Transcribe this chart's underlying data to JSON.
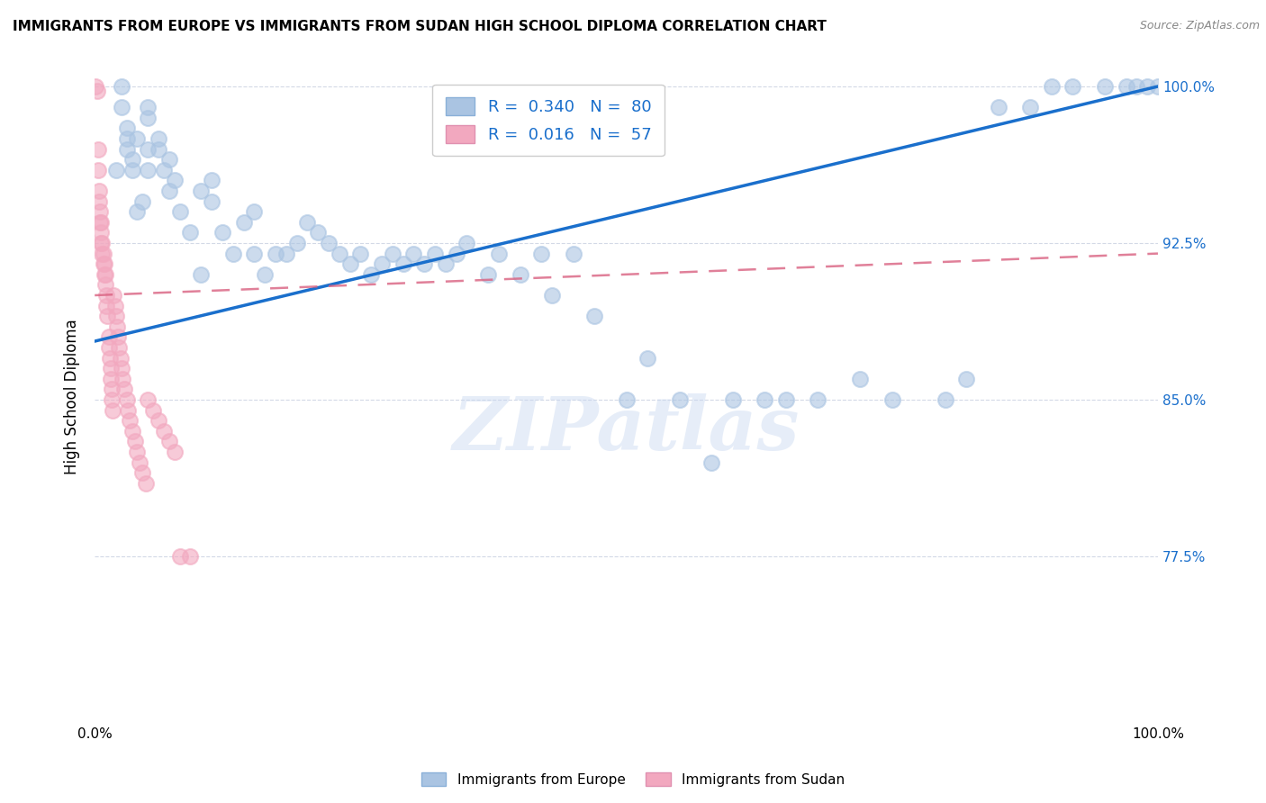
{
  "title": "IMMIGRANTS FROM EUROPE VS IMMIGRANTS FROM SUDAN HIGH SCHOOL DIPLOMA CORRELATION CHART",
  "source": "Source: ZipAtlas.com",
  "ylabel": "High School Diploma",
  "xlim": [
    0.0,
    1.0
  ],
  "ylim": [
    0.695,
    1.008
  ],
  "yticks": [
    0.775,
    0.85,
    0.925,
    1.0
  ],
  "ytick_labels": [
    "77.5%",
    "85.0%",
    "92.5%",
    "100.0%"
  ],
  "xticks": [
    0.0,
    0.2,
    0.4,
    0.6,
    0.8,
    1.0
  ],
  "xtick_labels": [
    "0.0%",
    "",
    "",
    "",
    "",
    "100.0%"
  ],
  "R_europe": 0.34,
  "N_europe": 80,
  "R_sudan": 0.016,
  "N_sudan": 57,
  "color_europe": "#aac4e2",
  "color_sudan": "#f2a8bf",
  "trend_europe_color": "#1a6fcc",
  "trend_sudan_color": "#d96080",
  "legend_europe_label": "Immigrants from Europe",
  "legend_sudan_label": "Immigrants from Sudan",
  "watermark": "ZIPatlas",
  "europe_x": [
    0.02,
    0.025,
    0.025,
    0.03,
    0.03,
    0.03,
    0.035,
    0.035,
    0.04,
    0.04,
    0.045,
    0.05,
    0.05,
    0.05,
    0.05,
    0.06,
    0.06,
    0.065,
    0.07,
    0.07,
    0.075,
    0.08,
    0.09,
    0.1,
    0.1,
    0.11,
    0.11,
    0.12,
    0.13,
    0.14,
    0.15,
    0.15,
    0.16,
    0.17,
    0.18,
    0.19,
    0.2,
    0.21,
    0.22,
    0.23,
    0.24,
    0.25,
    0.26,
    0.27,
    0.28,
    0.29,
    0.3,
    0.31,
    0.32,
    0.33,
    0.34,
    0.35,
    0.37,
    0.38,
    0.4,
    0.42,
    0.43,
    0.45,
    0.47,
    0.5,
    0.52,
    0.55,
    0.58,
    0.6,
    0.63,
    0.65,
    0.68,
    0.72,
    0.75,
    0.8,
    0.82,
    0.85,
    0.88,
    0.9,
    0.92,
    0.95,
    0.97,
    0.98,
    0.99,
    1.0
  ],
  "europe_y": [
    0.96,
    0.99,
    1.0,
    0.97,
    0.975,
    0.98,
    0.965,
    0.96,
    0.94,
    0.975,
    0.945,
    0.97,
    0.96,
    0.985,
    0.99,
    0.97,
    0.975,
    0.96,
    0.965,
    0.95,
    0.955,
    0.94,
    0.93,
    0.91,
    0.95,
    0.955,
    0.945,
    0.93,
    0.92,
    0.935,
    0.94,
    0.92,
    0.91,
    0.92,
    0.92,
    0.925,
    0.935,
    0.93,
    0.925,
    0.92,
    0.915,
    0.92,
    0.91,
    0.915,
    0.92,
    0.915,
    0.92,
    0.915,
    0.92,
    0.915,
    0.92,
    0.925,
    0.91,
    0.92,
    0.91,
    0.92,
    0.9,
    0.92,
    0.89,
    0.85,
    0.87,
    0.85,
    0.82,
    0.85,
    0.85,
    0.85,
    0.85,
    0.86,
    0.85,
    0.85,
    0.86,
    0.99,
    0.99,
    1.0,
    1.0,
    1.0,
    1.0,
    1.0,
    1.0,
    1.0
  ],
  "sudan_x": [
    0.001,
    0.002,
    0.003,
    0.003,
    0.004,
    0.004,
    0.005,
    0.005,
    0.006,
    0.006,
    0.006,
    0.007,
    0.007,
    0.008,
    0.008,
    0.009,
    0.009,
    0.01,
    0.01,
    0.011,
    0.011,
    0.012,
    0.013,
    0.013,
    0.014,
    0.015,
    0.015,
    0.016,
    0.016,
    0.017,
    0.018,
    0.019,
    0.02,
    0.021,
    0.022,
    0.023,
    0.024,
    0.025,
    0.026,
    0.028,
    0.03,
    0.031,
    0.033,
    0.035,
    0.038,
    0.04,
    0.042,
    0.045,
    0.048,
    0.05,
    0.055,
    0.06,
    0.065,
    0.07,
    0.075,
    0.08,
    0.09
  ],
  "sudan_y": [
    1.0,
    0.998,
    0.97,
    0.96,
    0.95,
    0.945,
    0.935,
    0.94,
    0.935,
    0.93,
    0.925,
    0.925,
    0.92,
    0.92,
    0.915,
    0.915,
    0.91,
    0.91,
    0.905,
    0.9,
    0.895,
    0.89,
    0.88,
    0.875,
    0.87,
    0.865,
    0.86,
    0.855,
    0.85,
    0.845,
    0.9,
    0.895,
    0.89,
    0.885,
    0.88,
    0.875,
    0.87,
    0.865,
    0.86,
    0.855,
    0.85,
    0.845,
    0.84,
    0.835,
    0.83,
    0.825,
    0.82,
    0.815,
    0.81,
    0.85,
    0.845,
    0.84,
    0.835,
    0.83,
    0.825,
    0.775,
    0.775
  ]
}
